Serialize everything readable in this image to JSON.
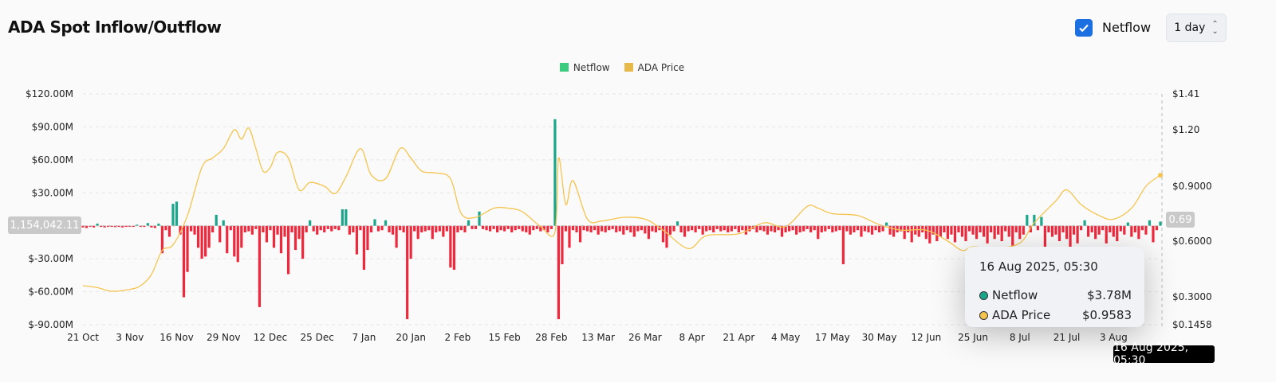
{
  "header": {
    "title": "ADA Spot Inflow/Outflow",
    "netflow_toggle_label": "Netflow",
    "netflow_checked": true,
    "period": "1 day"
  },
  "colors": {
    "positive": "#1aa68a",
    "negative": "#f0283c",
    "price": "#f5c44e",
    "legend_netflow": "#3ccb7f",
    "legend_price": "#e7b94a"
  },
  "crosshair": {
    "left_value": "1,154,042.11",
    "right_value": "0.69",
    "x_label": "16 Aug 2025, 05:30"
  },
  "tooltip": {
    "title": "16 Aug 2025, 05:30",
    "rows": [
      {
        "label": "Netflow",
        "value": "$3.78M"
      },
      {
        "label": "ADA Price",
        "value": "$0.9583"
      }
    ]
  },
  "chart_data": {
    "type": "bar+line",
    "title": "ADA Spot Inflow/Outflow",
    "legend": [
      "Netflow",
      "ADA Price"
    ],
    "legend_position": "top-center",
    "x_unit": "day index from 21 Oct 2024",
    "x_ticks": [
      {
        "d": 0,
        "label": "21 Oct"
      },
      {
        "d": 13,
        "label": "3 Nov"
      },
      {
        "d": 26,
        "label": "16 Nov"
      },
      {
        "d": 39,
        "label": "29 Nov"
      },
      {
        "d": 52,
        "label": "12 Dec"
      },
      {
        "d": 65,
        "label": "25 Dec"
      },
      {
        "d": 78,
        "label": "7 Jan"
      },
      {
        "d": 91,
        "label": "20 Jan"
      },
      {
        "d": 104,
        "label": "2 Feb"
      },
      {
        "d": 117,
        "label": "15 Feb"
      },
      {
        "d": 130,
        "label": "28 Feb"
      },
      {
        "d": 143,
        "label": "13 Mar"
      },
      {
        "d": 156,
        "label": "26 Mar"
      },
      {
        "d": 169,
        "label": "8 Apr"
      },
      {
        "d": 182,
        "label": "21 Apr"
      },
      {
        "d": 195,
        "label": "4 May"
      },
      {
        "d": 208,
        "label": "17 May"
      },
      {
        "d": 221,
        "label": "30 May"
      },
      {
        "d": 234,
        "label": "12 Jun"
      },
      {
        "d": 247,
        "label": "25 Jun"
      },
      {
        "d": 260,
        "label": "8 Jul"
      },
      {
        "d": 273,
        "label": "21 Jul"
      },
      {
        "d": 286,
        "label": "3 Aug"
      }
    ],
    "left_axis": {
      "ylim": [
        -90,
        120
      ],
      "ticks": [
        {
          "v": 120,
          "label": "$120.00M"
        },
        {
          "v": 90,
          "label": "$90.00M"
        },
        {
          "v": 60,
          "label": "$60.00M"
        },
        {
          "v": 30,
          "label": "$30.00M"
        },
        {
          "v": 0,
          "label": ""
        },
        {
          "v": -30,
          "label": "$-30.00M"
        },
        {
          "v": -60,
          "label": "$-60.00M"
        },
        {
          "v": -90,
          "label": "$-90.00M"
        }
      ]
    },
    "right_axis": {
      "ticks": [
        {
          "v": 1.41,
          "label": "$1.41"
        },
        {
          "v": 1.2,
          "label": "$1.20"
        },
        {
          "v": 0.9,
          "label": "$0.9000"
        },
        {
          "v": 0.6,
          "label": "$0.6000"
        },
        {
          "v": 0.3,
          "label": "$0.3000"
        },
        {
          "v": 0.1458,
          "label": "$0.1458"
        }
      ]
    },
    "netflow_millions": [
      -1.5,
      -2,
      -1,
      -1.5,
      2,
      -1,
      -1.5,
      -1,
      -1,
      -1.2,
      -1,
      -1.5,
      -1,
      -1,
      -1,
      1,
      -1,
      -1,
      2.5,
      -1.5,
      -2,
      2,
      -25,
      -4,
      -10,
      20,
      22,
      -8,
      -65,
      -42,
      -5,
      -8,
      -20,
      -30,
      -28,
      -20,
      -6,
      10,
      -15,
      5,
      -25,
      -4,
      -28,
      -33,
      -20,
      -6,
      -5,
      -8,
      -3,
      -74,
      -6,
      -15,
      -4,
      -20,
      -8,
      -25,
      -10,
      -44,
      -6,
      -22,
      -12,
      -30,
      -6,
      5,
      -5,
      -8,
      -4,
      -6,
      -3,
      -5,
      -3,
      -4,
      15,
      15,
      -8,
      -6,
      -26,
      -4,
      -40,
      -22,
      -6,
      6,
      -5,
      -4,
      5,
      -6,
      -8,
      -20,
      -4,
      -6,
      -85,
      -30,
      -5,
      -12,
      -6,
      -5,
      -4,
      -12,
      -6,
      -5,
      -10,
      -5,
      -38,
      -40,
      -6,
      -4,
      -6,
      5,
      -3,
      -3,
      13,
      -3,
      -4,
      -5,
      -3,
      -6,
      -4,
      -5,
      -3,
      -6,
      -4,
      -3,
      -5,
      -6,
      -8,
      -4,
      -3,
      -5,
      -4,
      -6,
      -3,
      97,
      -85,
      -35,
      -5,
      -20,
      -4,
      -6,
      -15,
      -4,
      -5,
      -6,
      -4,
      -8,
      -5,
      -6,
      -4,
      -3,
      -6,
      -5,
      -8,
      -4,
      -6,
      -10,
      -5,
      -4,
      -7,
      -12,
      -5,
      -6,
      -4,
      -15,
      -20,
      -8,
      -5,
      4,
      -6,
      -10,
      -5,
      -4,
      -6,
      -3,
      -8,
      -5,
      -4,
      -6,
      -3,
      -5,
      -4,
      -6,
      -5,
      -3,
      -6,
      -4,
      -8,
      -5,
      -3,
      -6,
      -4,
      -5,
      -8,
      -5,
      -6,
      -4,
      -10,
      -6,
      -5,
      -4,
      -8,
      -6,
      -5,
      -3,
      -6,
      -4,
      -12,
      -6,
      -5,
      -3,
      -6,
      -5,
      -4,
      -35,
      -5,
      -8,
      -6,
      -4,
      -10,
      -5,
      -6,
      -8,
      -4,
      -6,
      -5,
      3,
      -8,
      -10,
      -6,
      -5,
      -12,
      -6,
      -15,
      -8,
      -10,
      -6,
      -12,
      -16,
      -8,
      -14,
      -10,
      -6,
      -12,
      -8,
      -15,
      -6,
      -10,
      -14,
      -5,
      -8,
      -12,
      -6,
      -10,
      -16,
      -6,
      -12,
      -8,
      -14,
      -5,
      -10,
      -18,
      -6,
      -12,
      -8,
      10,
      -6,
      10,
      -4,
      8,
      -20,
      -6,
      -10,
      -8,
      -14,
      -6,
      -12,
      -20,
      -8,
      -16,
      -4,
      5,
      -10,
      -6,
      -12,
      -8,
      -4,
      -16,
      -6,
      -10,
      -14,
      -5,
      -8,
      3,
      -10,
      -6,
      -12,
      -4,
      -8,
      5,
      -15,
      -4,
      3.78
    ],
    "price": [
      [
        0,
        0.36
      ],
      [
        4,
        0.35
      ],
      [
        8,
        0.33
      ],
      [
        13,
        0.34
      ],
      [
        16,
        0.36
      ],
      [
        19,
        0.42
      ],
      [
        22,
        0.55
      ],
      [
        25,
        0.58
      ],
      [
        29,
        0.74
      ],
      [
        33,
        1.0
      ],
      [
        36,
        1.05
      ],
      [
        39,
        1.1
      ],
      [
        42,
        1.2
      ],
      [
        44,
        1.15
      ],
      [
        46,
        1.21
      ],
      [
        48,
        1.1
      ],
      [
        50,
        0.98
      ],
      [
        52,
        1.0
      ],
      [
        54,
        1.08
      ],
      [
        57,
        1.05
      ],
      [
        60,
        0.88
      ],
      [
        63,
        0.92
      ],
      [
        67,
        0.9
      ],
      [
        70,
        0.86
      ],
      [
        73,
        0.95
      ],
      [
        77,
        1.1
      ],
      [
        80,
        0.96
      ],
      [
        84,
        0.94
      ],
      [
        88,
        1.1
      ],
      [
        91,
        1.05
      ],
      [
        94,
        0.98
      ],
      [
        98,
        0.97
      ],
      [
        102,
        0.94
      ],
      [
        105,
        0.75
      ],
      [
        109,
        0.73
      ],
      [
        114,
        0.78
      ],
      [
        118,
        0.78
      ],
      [
        122,
        0.76
      ],
      [
        127,
        0.68
      ],
      [
        131,
        0.65
      ],
      [
        132,
        1.05
      ],
      [
        134,
        0.8
      ],
      [
        136,
        0.93
      ],
      [
        140,
        0.72
      ],
      [
        144,
        0.71
      ],
      [
        150,
        0.73
      ],
      [
        156,
        0.72
      ],
      [
        161,
        0.66
      ],
      [
        168,
        0.56
      ],
      [
        173,
        0.63
      ],
      [
        182,
        0.64
      ],
      [
        189,
        0.7
      ],
      [
        195,
        0.68
      ],
      [
        201,
        0.79
      ],
      [
        204,
        0.78
      ],
      [
        208,
        0.75
      ],
      [
        215,
        0.74
      ],
      [
        221,
        0.69
      ],
      [
        227,
        0.66
      ],
      [
        234,
        0.66
      ],
      [
        240,
        0.6
      ],
      [
        244,
        0.55
      ],
      [
        247,
        0.57
      ],
      [
        253,
        0.56
      ],
      [
        260,
        0.59
      ],
      [
        264,
        0.7
      ],
      [
        270,
        0.82
      ],
      [
        273,
        0.88
      ],
      [
        277,
        0.8
      ],
      [
        282,
        0.74
      ],
      [
        286,
        0.72
      ],
      [
        291,
        0.78
      ],
      [
        295,
        0.9
      ],
      [
        299,
        0.9583
      ]
    ]
  }
}
